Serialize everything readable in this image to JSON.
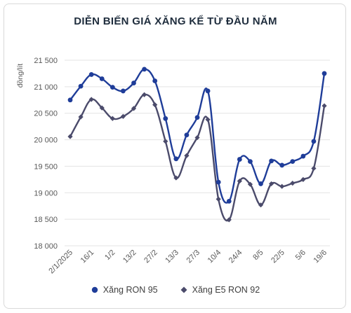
{
  "chart_data": {
    "type": "line",
    "title": "DIỄN BIẾN GIÁ XĂNG KỂ TỪ ĐẦU NĂM",
    "ylabel": "đồng/lít",
    "xlabel": "",
    "ylim": [
      18000,
      21500
    ],
    "y_ticks": [
      18000,
      18500,
      19000,
      19500,
      20000,
      20500,
      21000,
      21500
    ],
    "y_tick_labels": [
      "18 000",
      "18 500",
      "19 000",
      "19 500",
      "20 000",
      "20 500",
      "21 000",
      "21 500"
    ],
    "x_tick_labels": [
      "2/1/2025",
      "16/1",
      "1/2",
      "13/2",
      "27/2",
      "13/3",
      "27/3",
      "10/4",
      "24/4",
      "8/5",
      "22/5",
      "5/6",
      "19/6"
    ],
    "x_tick_index": [
      0,
      2,
      4,
      6,
      8,
      10,
      12,
      14,
      16,
      18,
      20,
      22,
      24
    ],
    "legend_position": "bottom",
    "series": [
      {
        "name": "Xăng RON 95",
        "color": "#1f3d99",
        "marker": "circle",
        "values": [
          20750,
          21010,
          21230,
          21150,
          20990,
          20920,
          21070,
          21330,
          21110,
          20400,
          19640,
          20090,
          20420,
          20920,
          19200,
          18840,
          19630,
          19590,
          19170,
          19600,
          19520,
          19590,
          19690,
          19970,
          21250
        ]
      },
      {
        "name": "Xăng E5 RON 92",
        "color": "#4b4b6b",
        "marker": "diamond",
        "values": [
          20060,
          20430,
          20760,
          20600,
          20400,
          20440,
          20590,
          20850,
          20660,
          19970,
          19280,
          19700,
          20040,
          20380,
          18880,
          18490,
          19220,
          19160,
          18770,
          19170,
          19120,
          19180,
          19250,
          19460,
          20640
        ]
      }
    ]
  }
}
